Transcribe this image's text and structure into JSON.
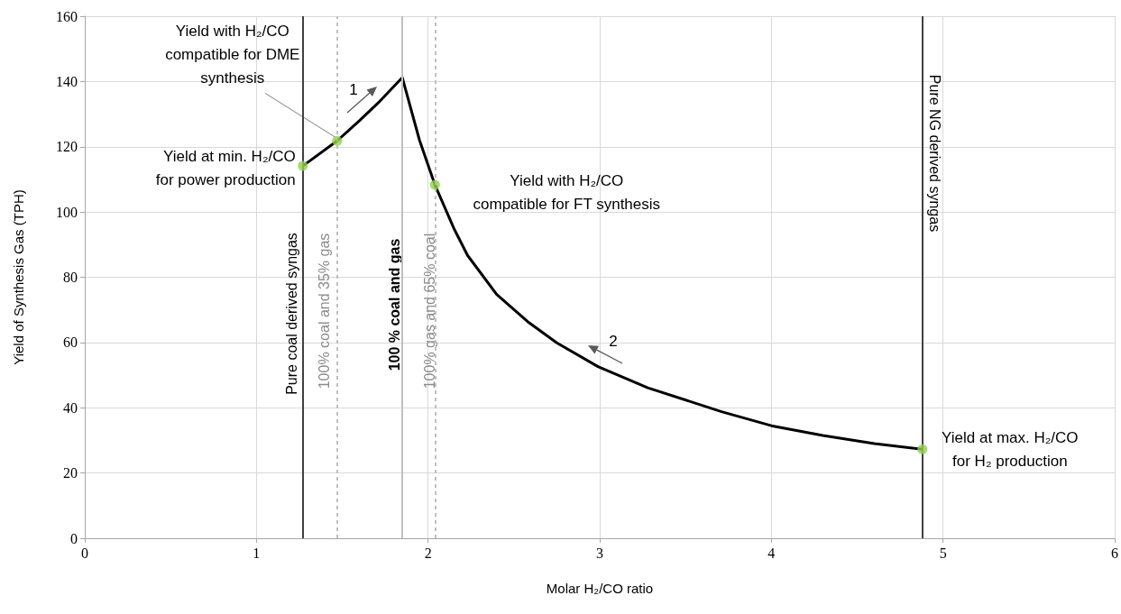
{
  "chart_data": {
    "type": "line",
    "xlabel": "Molar H₂/CO ratio",
    "ylabel": "Yield of Synthesis Gas (TPH)",
    "xlim": [
      0,
      6
    ],
    "xticks": [
      0,
      1,
      2,
      3,
      4,
      5,
      6
    ],
    "ylim": [
      0,
      160
    ],
    "yticks": [
      0,
      20,
      40,
      60,
      80,
      100,
      120,
      140,
      160
    ],
    "grid": true,
    "series": [
      {
        "color": "#000000",
        "x": [
          1.27,
          1.47,
          1.6,
          1.72,
          1.85,
          1.95,
          2.04,
          2.15,
          2.23,
          2.4,
          2.58,
          2.75,
          2.99,
          3.28,
          3.71,
          4.0,
          4.3,
          4.6,
          4.88
        ],
        "values": [
          114.1,
          121.8,
          128,
          134,
          141.2,
          122,
          108.3,
          95,
          86.7,
          74.7,
          66.4,
          59.9,
          52.6,
          46.1,
          38.8,
          34.5,
          31.5,
          29,
          27.3
        ]
      },
      {
        "type": "scatter",
        "color": "#92d050",
        "x": [
          1.27,
          1.47,
          2.04,
          4.88
        ],
        "values": [
          114.1,
          121.8,
          108.3,
          27.3
        ]
      }
    ],
    "ref_lines": [
      {
        "axis": "x",
        "value": 1.27,
        "label": "Pure coal derived syngas",
        "color": "#404040",
        "line_style": "solid"
      },
      {
        "axis": "x",
        "value": 1.47,
        "label": "100% coal and 35% gas",
        "color": "#bfbfbf",
        "line_style": "dashed"
      },
      {
        "axis": "x",
        "value": 1.85,
        "label": "100 % coal and gas",
        "color": "#bfbfbf",
        "line_style": "solid"
      },
      {
        "axis": "x",
        "value": 2.04,
        "label": "100% gas and 65% coal",
        "color": "#bfbfbf",
        "line_style": "dashed"
      },
      {
        "axis": "x",
        "value": 4.88,
        "label": "Pure NG derived syngas",
        "color": "#404040",
        "line_style": "solid"
      }
    ],
    "annotations": [
      {
        "text": "Yield with H₂/CO\ncompatible for DME\nsynthesis",
        "x": 1.47,
        "y": 121.8
      },
      {
        "text": "Yield at min. H₂/CO\nfor power production",
        "x": 1.27,
        "y": 114.1
      },
      {
        "text": "Yield with H₂/CO\ncompatible for FT synthesis",
        "x": 2.04,
        "y": 108.3
      },
      {
        "text": "Yield at max. H₂/CO\nfor H₂ production",
        "x": 4.88,
        "y": 27.3
      },
      "1",
      "2"
    ]
  }
}
